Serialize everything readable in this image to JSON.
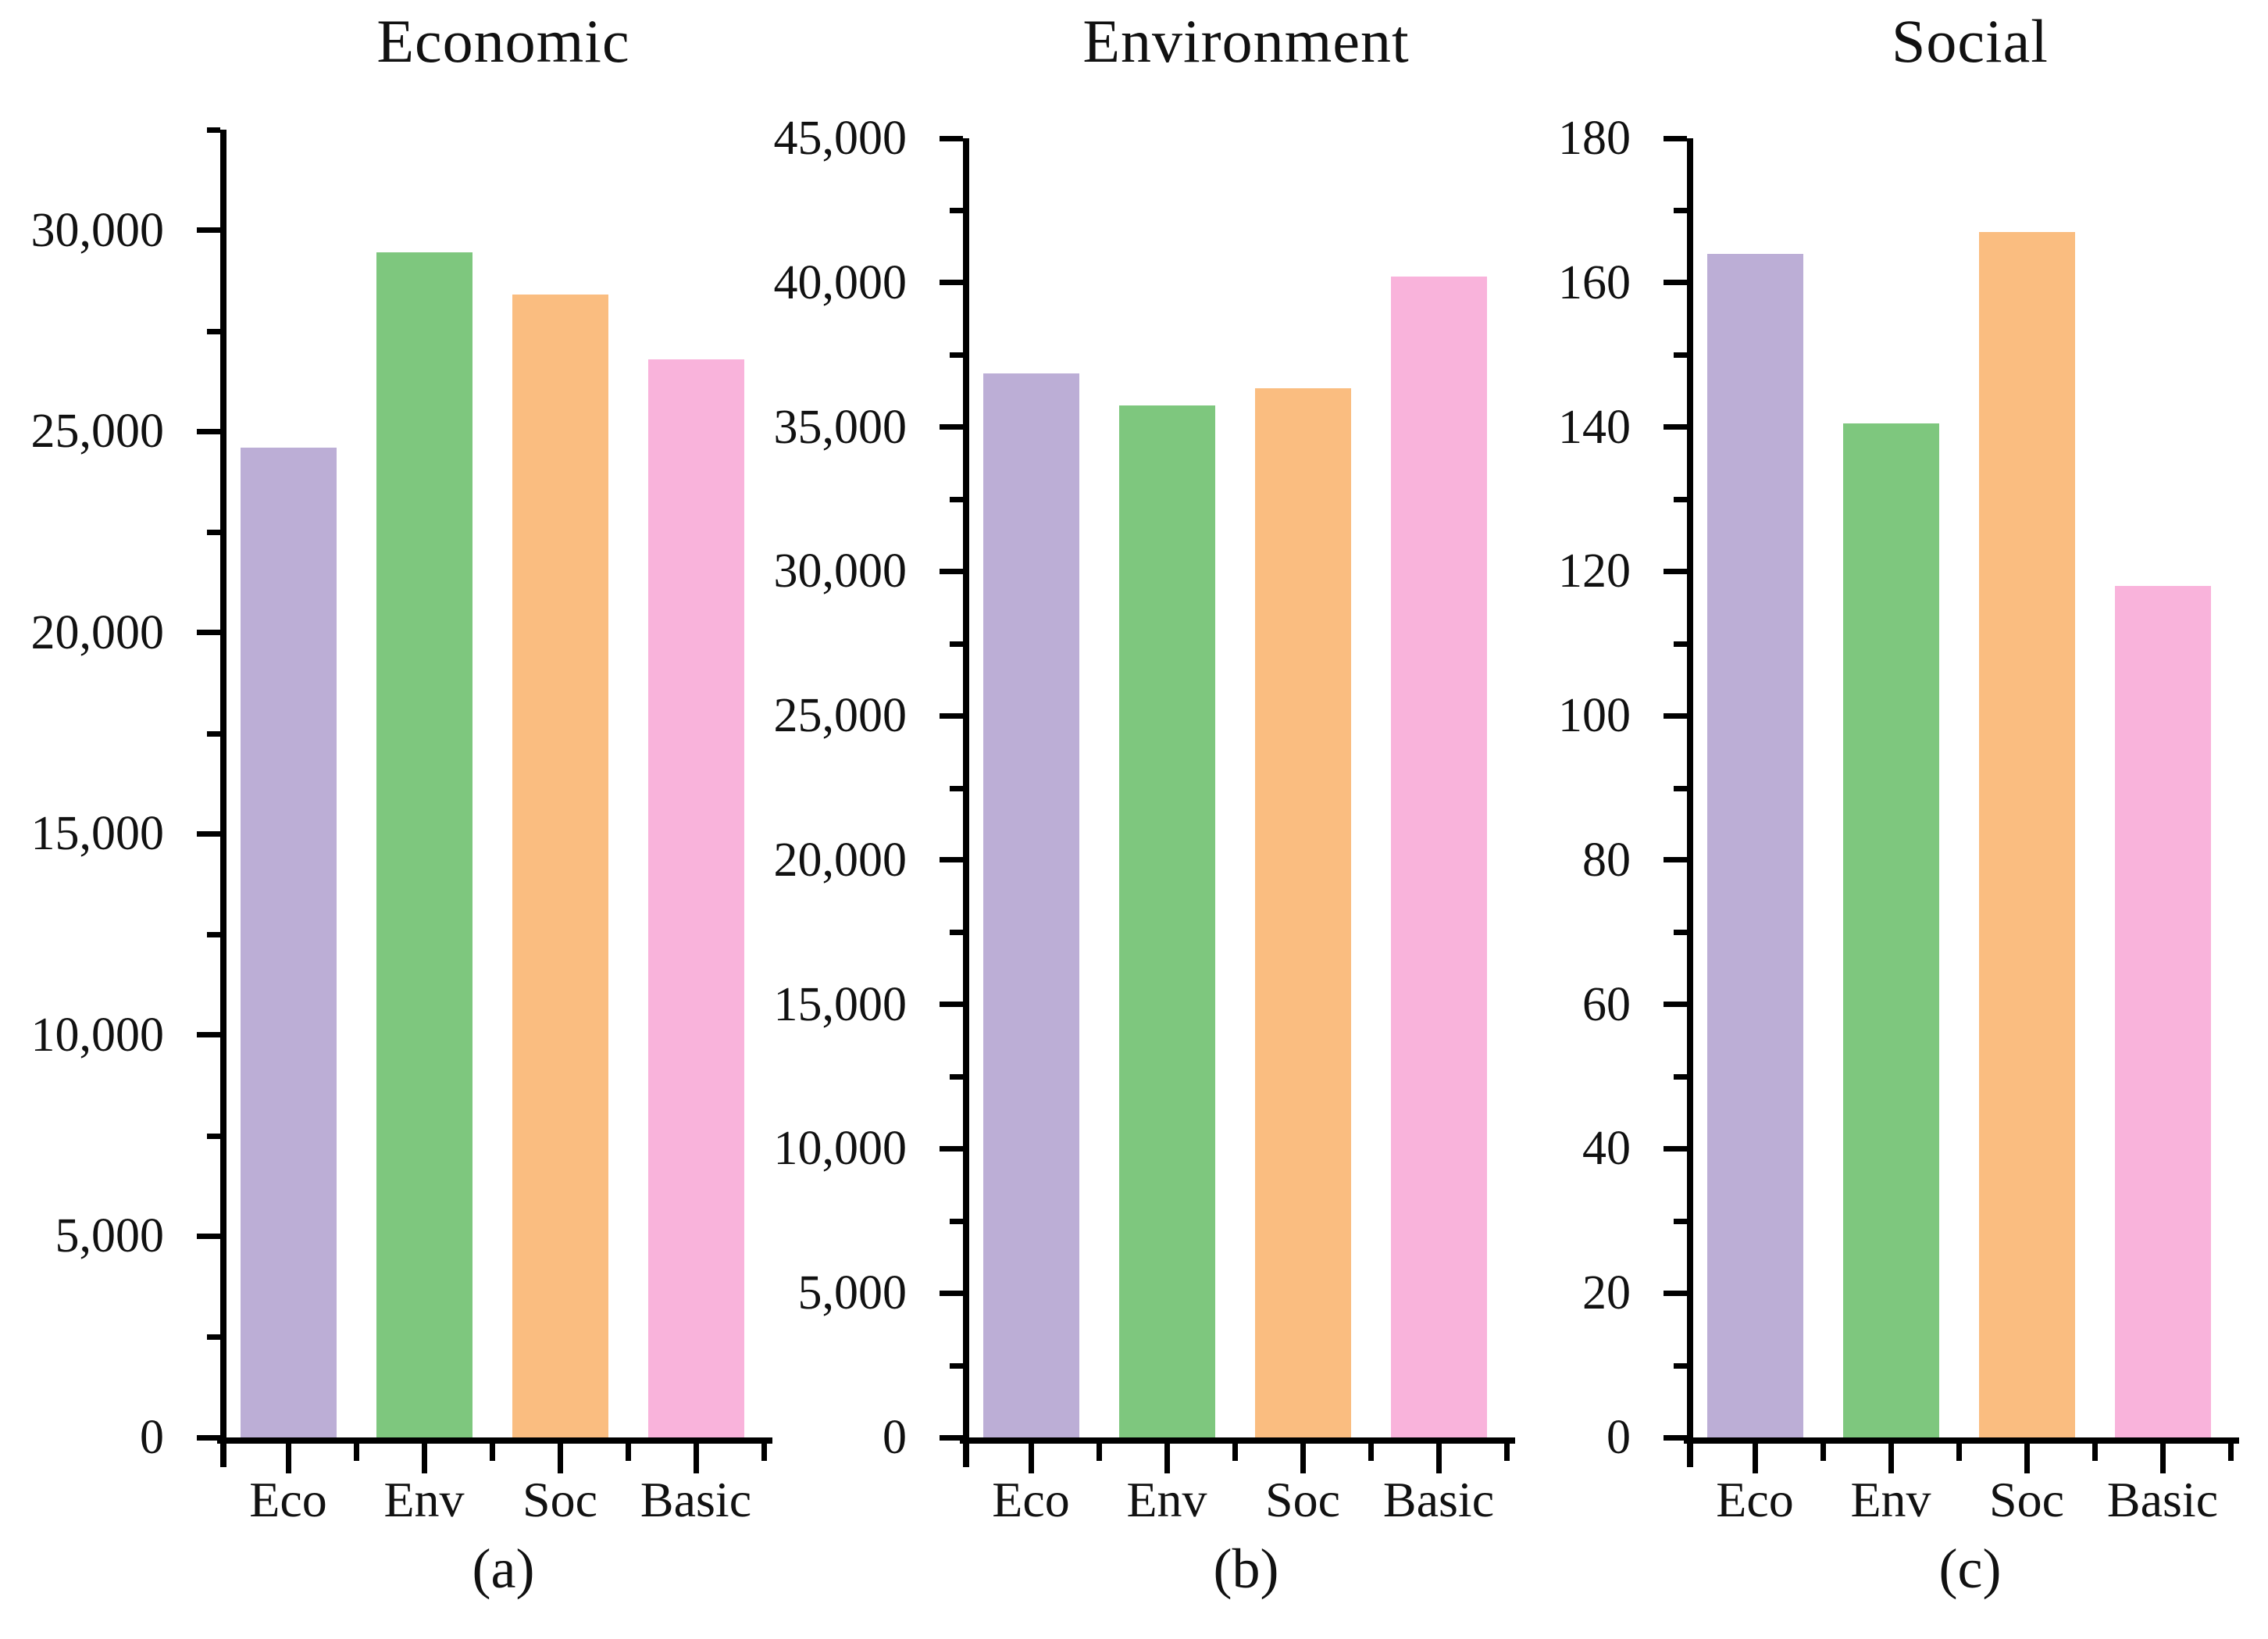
{
  "figure": {
    "background_color": "#ffffff",
    "text_color": "#111111",
    "axis_color": "#000000"
  },
  "chart_data": [
    {
      "type": "bar",
      "panel_id": "a",
      "title": "Economic",
      "caption": "(a)",
      "categories": [
        "Eco",
        "Env",
        "Soc",
        "Basic"
      ],
      "values": [
        24600,
        29450,
        28400,
        26800
      ],
      "bar_colors": [
        "#BCAED6",
        "#7EC77E",
        "#FABD80",
        "#F9B3DB"
      ],
      "ylim": [
        0,
        32500
      ],
      "yticks": [
        0,
        5000,
        10000,
        15000,
        20000,
        25000,
        30000
      ],
      "ytick_labels": [
        "0",
        "5,000",
        "10,000",
        "15,000",
        "20,000",
        "25,000",
        "30,000"
      ],
      "minor_ytick_step": 2500,
      "xlabel": "",
      "ylabel": "",
      "grid": false,
      "legend": "none"
    },
    {
      "type": "bar",
      "panel_id": "b",
      "title": "Environment",
      "caption": "(b)",
      "categories": [
        "Eco",
        "Env",
        "Soc",
        "Basic"
      ],
      "values": [
        36850,
        35750,
        36350,
        40200
      ],
      "bar_colors": [
        "#BCAED6",
        "#7EC77E",
        "#FABD80",
        "#F9B3DB"
      ],
      "ylim": [
        0,
        45000
      ],
      "yticks": [
        0,
        5000,
        10000,
        15000,
        20000,
        25000,
        30000,
        35000,
        40000,
        45000
      ],
      "ytick_labels": [
        "0",
        "5,000",
        "10,000",
        "15,000",
        "20,000",
        "25,000",
        "30,000",
        "35,000",
        "40,000",
        "45,000"
      ],
      "minor_ytick_step": 2500,
      "xlabel": "",
      "ylabel": "",
      "grid": false,
      "legend": "none"
    },
    {
      "type": "bar",
      "panel_id": "c",
      "title": "Social",
      "caption": "(c)",
      "categories": [
        "Eco",
        "Env",
        "Soc",
        "Basic"
      ],
      "values": [
        164,
        140.5,
        167,
        118
      ],
      "bar_colors": [
        "#BCAED6",
        "#7EC77E",
        "#FABD80",
        "#F9B3DB"
      ],
      "ylim": [
        0,
        180
      ],
      "yticks": [
        0,
        20,
        40,
        60,
        80,
        100,
        120,
        140,
        160,
        180
      ],
      "ytick_labels": [
        "0",
        "20",
        "40",
        "60",
        "80",
        "100",
        "120",
        "140",
        "160",
        "180"
      ],
      "minor_ytick_step": 10,
      "xlabel": "",
      "ylabel": "",
      "grid": false,
      "legend": "none"
    }
  ]
}
